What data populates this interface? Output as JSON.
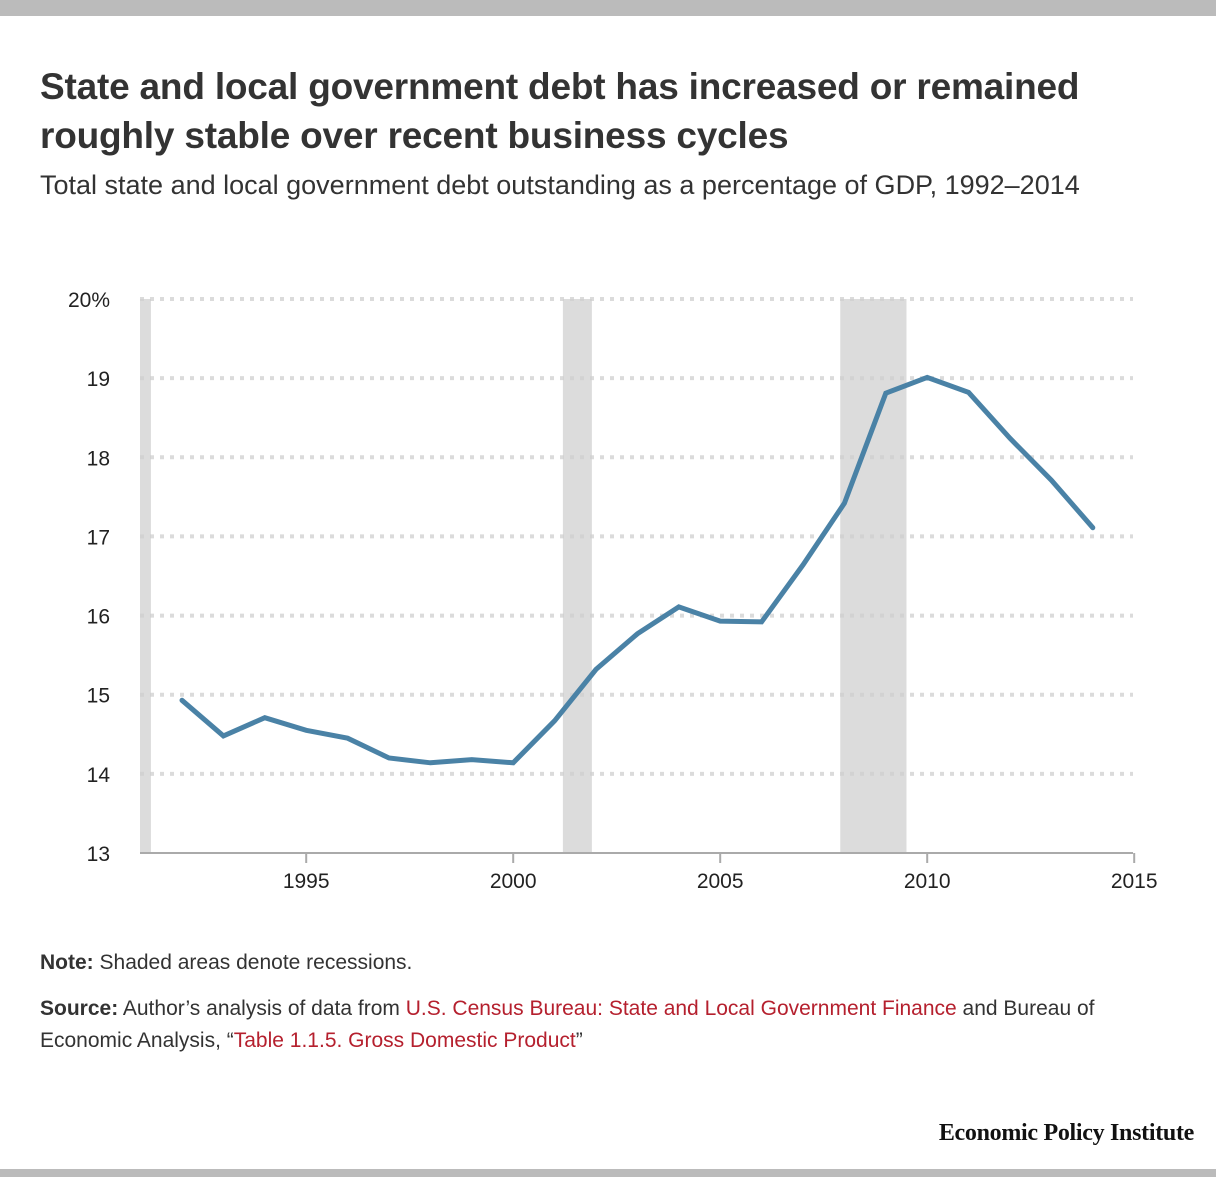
{
  "header": {
    "title": "State and local government debt has increased or remained roughly stable over recent business cycles",
    "subtitle": "Total state and local government debt outstanding as a percentage of GDP, 1992–2014"
  },
  "chart_data": {
    "type": "line",
    "title": "State and local government debt has increased or remained roughly stable over recent business cycles",
    "subtitle": "Total state and local government debt outstanding as a percentage of GDP, 1992–2014",
    "xlabel": "",
    "ylabel": "",
    "x": [
      1992,
      1993,
      1994,
      1995,
      1996,
      1997,
      1998,
      1999,
      2000,
      2001,
      2002,
      2003,
      2004,
      2005,
      2006,
      2007,
      2008,
      2009,
      2010,
      2011,
      2012,
      2013,
      2014
    ],
    "series": [
      {
        "name": "State and local government debt (% of GDP)",
        "color": "#4a82a6",
        "values": [
          14.93,
          14.48,
          14.71,
          14.55,
          14.45,
          14.2,
          14.14,
          14.18,
          14.14,
          14.67,
          15.32,
          15.77,
          16.11,
          15.93,
          15.92,
          16.64,
          17.42,
          18.81,
          19.01,
          18.82,
          18.24,
          17.71,
          17.11
        ]
      }
    ],
    "xlim": [
      1991.1,
      2015
    ],
    "ylim": [
      13,
      20
    ],
    "xticks": [
      1995,
      2000,
      2005,
      2010,
      2015
    ],
    "xtick_labels": [
      "1995",
      "2000",
      "2005",
      "2010",
      "2015"
    ],
    "yticks": [
      13,
      14,
      15,
      16,
      17,
      18,
      19,
      20
    ],
    "ytick_labels": [
      "13",
      "14",
      "15",
      "16",
      "17",
      "18",
      "19",
      "20%"
    ],
    "recessions": [
      {
        "start": 1990.6,
        "end": 1991.25
      },
      {
        "start": 2001.2,
        "end": 2001.9
      },
      {
        "start": 2007.9,
        "end": 2009.5
      }
    ],
    "recession_color": "#dcdcdc",
    "grid": true,
    "legend": "none"
  },
  "footer": {
    "note_label": "Note:",
    "note_text": " Shaded areas denote recessions.",
    "source_label": "Source:",
    "source_text_1": " Author’s analysis of data from ",
    "source_link_1": "U.S. Census Bureau: State and Local Government Finance",
    "source_text_2": " and Bureau of Economic Analysis, “",
    "source_link_2": "Table 1.1.5. Gross Domestic Product",
    "source_text_3": "”",
    "logo": "Economic Policy Institute"
  },
  "colors": {
    "line": "#4a82a6",
    "link": "#b5202e",
    "recession": "#dcdcdc"
  }
}
